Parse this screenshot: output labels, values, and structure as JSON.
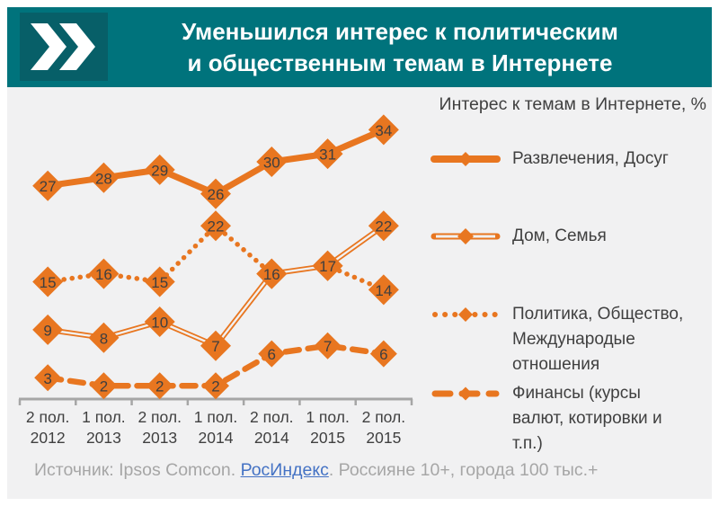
{
  "header": {
    "title_line1": "Уменьшился интерес к политическим",
    "title_line2": "и общественным темам в Интернете"
  },
  "legend": {
    "title": "Интерес к темам в Интернете, %",
    "items": [
      {
        "label": "Развлечения,  Досуг",
        "series_style": "solid-thick"
      },
      {
        "label": "Дом, Семья",
        "series_style": "double"
      },
      {
        "label": "Политика, Общество,\nМеждународые\nотношения",
        "series_style": "dotted"
      },
      {
        "label": "Финансы (курсы\nвалют, котировки  и\nт.п.)",
        "series_style": "dashed"
      }
    ]
  },
  "source": {
    "prefix": "Источник: Ipsos Comcon. ",
    "link": "РосИндекс",
    "suffix": ". Россияне 10+, города 100 тыс.+"
  },
  "colors": {
    "accent_orange": "#E87620",
    "banner_teal": "#00737C",
    "icon_teal": "#075F68",
    "text_dark": "#404040",
    "marker_label": "#3F3F3F",
    "axis_gray": "#A6A6A6",
    "source_gray": "#A6A6A6",
    "link_blue": "#4472C4",
    "content_bg": "#F1F1F2"
  },
  "chart_data": {
    "type": "line",
    "title": "Интерес к темам в Интернете, %",
    "xlabel": "",
    "ylabel": "",
    "ylim": [
      0,
      38
    ],
    "grid": false,
    "legend_position": "right",
    "categories": [
      "2 пол. 2012",
      "1 пол. 2013",
      "2 пол. 2013",
      "1 пол. 2014",
      "2 пол. 2014",
      "1 пол. 2015",
      "2 пол. 2015"
    ],
    "series": [
      {
        "name": "Развлечения,  Досуг",
        "style": "solid-thick",
        "values": [
          27,
          28,
          29,
          26,
          30,
          31,
          34
        ]
      },
      {
        "name": "Дом, Семья",
        "style": "double",
        "values": [
          9,
          8,
          10,
          7,
          16,
          17,
          22
        ]
      },
      {
        "name": "Политика, Общество, Международые отношения",
        "style": "dotted",
        "values": [
          15,
          16,
          15,
          22,
          16,
          17,
          14
        ]
      },
      {
        "name": "Финансы (курсы валют, котировки и т.п.)",
        "style": "dashed",
        "values": [
          3,
          2,
          2,
          2,
          6,
          7,
          6
        ]
      }
    ]
  }
}
